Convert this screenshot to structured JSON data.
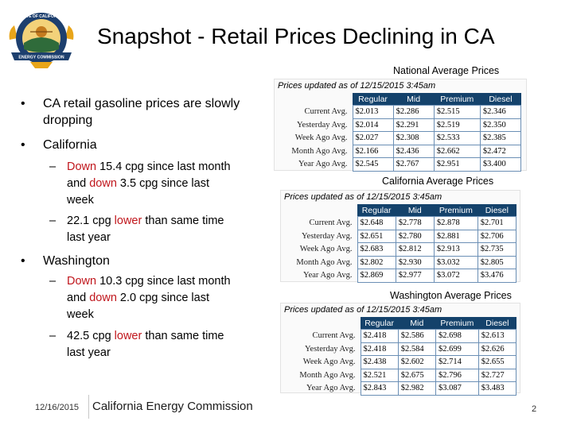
{
  "title": "Snapshot - Retail Prices Declining in CA",
  "logo": {
    "icon": "state-of-california-energy-commission-seal",
    "top_text": "STATE OF CALIFORNIA",
    "bottom_text": "ENERGY COMMISSION",
    "colors": {
      "gold": "#e8a51a",
      "navy": "#1d3f6e",
      "green": "#2f6b3a"
    }
  },
  "bullets": [
    {
      "text": "CA retail gasoline prices are slowly dropping"
    },
    {
      "text": "California",
      "subs": [
        {
          "pre": "",
          "red": "Down",
          "post": " 15.4 cpg since last month and ",
          "red2": "down",
          "post2": " 3.5 cpg since last week"
        },
        {
          "pre": "22.1 cpg ",
          "red": "lower",
          "post": " than same time last year",
          "red2": "",
          "post2": ""
        }
      ]
    },
    {
      "text": "Washington",
      "subs": [
        {
          "pre": "",
          "red": "Down",
          "post": " 10.3 cpg since last month and ",
          "red2": "down",
          "post2": " 2.0 cpg since last week"
        },
        {
          "pre": "42.5 cpg ",
          "red": "lower",
          "post": " than same time last year",
          "red2": "",
          "post2": ""
        }
      ]
    }
  ],
  "tables": [
    {
      "heading": "National Average Prices",
      "updated": "Prices updated as of 12/15/2015 3:45am",
      "columns": [
        "Regular",
        "Mid",
        "Premium",
        "Diesel"
      ],
      "rows": [
        {
          "label": "Current Avg.",
          "values": [
            "$2.013",
            "$2.286",
            "$2.515",
            "$2.346"
          ]
        },
        {
          "label": "Yesterday Avg.",
          "values": [
            "$2.014",
            "$2.291",
            "$2.519",
            "$2.350"
          ]
        },
        {
          "label": "Week Ago Avg.",
          "values": [
            "$2.027",
            "$2.308",
            "$2.533",
            "$2.385"
          ]
        },
        {
          "label": "Month Ago Avg.",
          "values": [
            "$2.166",
            "$2.436",
            "$2.662",
            "$2.472"
          ]
        },
        {
          "label": "Year Ago Avg.",
          "values": [
            "$2.545",
            "$2.767",
            "$2.951",
            "$3.400"
          ]
        }
      ]
    },
    {
      "heading": "California Average Prices",
      "updated": "Prices updated as of 12/15/2015 3:45am",
      "columns": [
        "Regular",
        "Mid",
        "Premium",
        "Diesel"
      ],
      "rows": [
        {
          "label": "Current Avg.",
          "values": [
            "$2.648",
            "$2.778",
            "$2.878",
            "$2.701"
          ]
        },
        {
          "label": "Yesterday Avg.",
          "values": [
            "$2.651",
            "$2.780",
            "$2.881",
            "$2.706"
          ]
        },
        {
          "label": "Week Ago Avg.",
          "values": [
            "$2.683",
            "$2.812",
            "$2.913",
            "$2.735"
          ]
        },
        {
          "label": "Month Ago Avg.",
          "values": [
            "$2.802",
            "$2.930",
            "$3.032",
            "$2.805"
          ]
        },
        {
          "label": "Year Ago Avg.",
          "values": [
            "$2.869",
            "$2.977",
            "$3.072",
            "$3.476"
          ]
        }
      ]
    },
    {
      "heading": "Washington Average Prices",
      "updated": "Prices updated as of 12/15/2015 3:45am",
      "columns": [
        "Regular",
        "Mid",
        "Premium",
        "Diesel"
      ],
      "rows": [
        {
          "label": "Current Avg.",
          "values": [
            "$2.418",
            "$2.586",
            "$2.698",
            "$2.613"
          ]
        },
        {
          "label": "Yesterday Avg.",
          "values": [
            "$2.418",
            "$2.584",
            "$2.699",
            "$2.626"
          ]
        },
        {
          "label": "Week Ago Avg.",
          "values": [
            "$2.438",
            "$2.602",
            "$2.714",
            "$2.655"
          ]
        },
        {
          "label": "Month Ago Avg.",
          "values": [
            "$2.521",
            "$2.675",
            "$2.796",
            "$2.727"
          ]
        },
        {
          "label": "Year Ago Avg.",
          "values": [
            "$2.843",
            "$2.982",
            "$3.087",
            "$3.483"
          ]
        }
      ]
    }
  ],
  "footer": {
    "date": "12/16/2015",
    "org": "California Energy Commission",
    "page": "2"
  }
}
